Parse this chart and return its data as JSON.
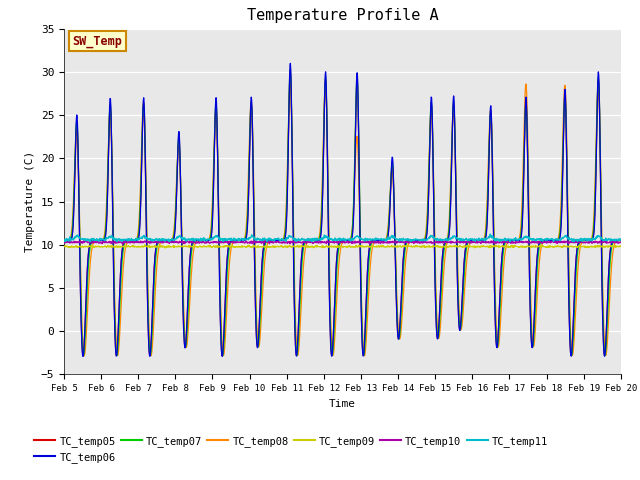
{
  "title": "Temperature Profile A",
  "xlabel": "Time",
  "ylabel": "Temperature (C)",
  "ylim": [
    -5,
    35
  ],
  "n_days": 15,
  "xtick_labels": [
    "Feb 5",
    "Feb 6",
    "Feb 7",
    "Feb 8",
    "Feb 9",
    "Feb 10",
    "Feb 11",
    "Feb 12",
    "Feb 13",
    "Feb 14",
    "Feb 15",
    "Feb 16",
    "Feb 17",
    "Feb 18",
    "Feb 19",
    "Feb 20"
  ],
  "series_colors": {
    "TC_temp05": "#dd0000",
    "TC_temp06": "#0000dd",
    "TC_temp07": "#00cc00",
    "TC_temp08": "#ff8800",
    "TC_temp09": "#cccc00",
    "TC_temp10": "#aa00aa",
    "TC_temp11": "#00bbcc"
  },
  "background_color": "#e8e8e8",
  "annotation_text": "SW_Temp",
  "annotation_bg": "#ffffcc",
  "annotation_border": "#cc8800",
  "annotation_text_color": "#880000",
  "spike_positions": [
    0.35,
    1.25,
    2.15,
    3.1,
    4.1,
    5.05,
    6.1,
    7.05,
    7.9,
    8.85,
    9.9,
    10.5,
    11.5,
    12.45,
    13.5,
    14.4
  ],
  "spike_peaks_06": [
    26,
    28,
    28,
    24,
    28,
    28,
    32,
    31,
    31,
    21,
    28,
    28,
    27,
    28,
    29,
    31
  ],
  "spike_peaks_08": [
    25,
    27,
    28,
    23,
    27,
    28,
    30,
    30,
    24,
    20,
    27,
    27,
    27,
    30,
    30,
    30
  ],
  "spike_troughs": [
    -3,
    -3,
    -3,
    -2,
    -3,
    -2,
    -3,
    -3,
    -3,
    -1,
    -1,
    0,
    -2,
    -2,
    -3,
    -3
  ],
  "tc09_level": 9.8,
  "tc10_level": 10.3,
  "tc11_level": 10.6,
  "sw_temp_level": 10.5
}
